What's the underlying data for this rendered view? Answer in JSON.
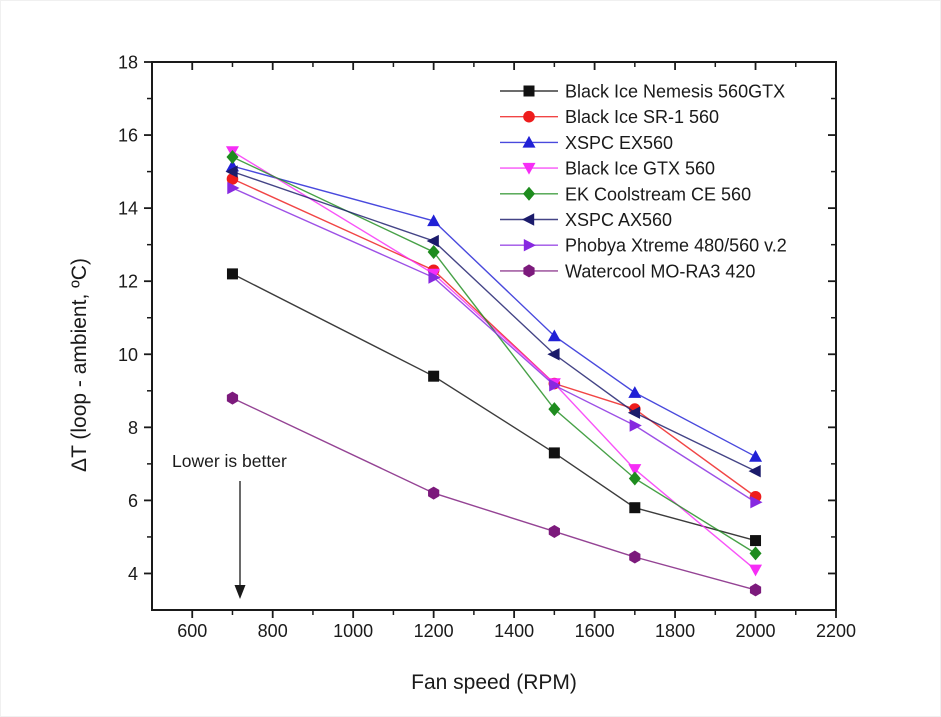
{
  "figure": {
    "background_color": "#ffffff",
    "frame_color": "#1a1a1a",
    "text_color": "#1a1a1a"
  },
  "chart_data": {
    "type": "line",
    "title": "",
    "xlabel": "Fan speed (RPM)",
    "ylabel": "ΔT (loop - ambient, ºC)",
    "xlim": [
      500,
      2200
    ],
    "ylim": [
      3,
      18
    ],
    "x_major_ticks": [
      600,
      800,
      1000,
      1200,
      1400,
      1600,
      1800,
      2000,
      2200
    ],
    "x_minor_ticks": [
      700,
      900,
      1100,
      1300,
      1500,
      1700,
      1900,
      2100
    ],
    "y_major_ticks": [
      4,
      6,
      8,
      10,
      12,
      14,
      16,
      18
    ],
    "y_minor_ticks": [
      5,
      7,
      9,
      11,
      13,
      15,
      17
    ],
    "grid": false,
    "legend_position": "upper-right-inside",
    "annotation": {
      "text": "Lower is better",
      "arrow": "down"
    },
    "x": [
      700,
      1200,
      1500,
      1700,
      2000
    ],
    "series": [
      {
        "name": "Black Ice Nemesis 560GTX",
        "marker": "square",
        "color": "#111111",
        "values": [
          12.2,
          9.4,
          7.3,
          5.8,
          4.9
        ]
      },
      {
        "name": "Black Ice SR-1 560",
        "marker": "circle",
        "color": "#ee1c1c",
        "values": [
          14.8,
          12.3,
          9.2,
          8.5,
          6.1
        ]
      },
      {
        "name": "XSPC EX560",
        "marker": "triangle-up",
        "color": "#2121d6",
        "values": [
          15.15,
          13.65,
          10.5,
          8.95,
          7.2
        ]
      },
      {
        "name": "Black Ice GTX 560",
        "marker": "triangle-down",
        "color": "#f62df6",
        "values": [
          15.55,
          12.2,
          9.2,
          6.85,
          4.1
        ]
      },
      {
        "name": "EK Coolstream CE 560",
        "marker": "diamond",
        "color": "#1e8c1e",
        "values": [
          15.4,
          12.8,
          8.5,
          6.6,
          4.55
        ]
      },
      {
        "name": "XSPC AX560",
        "marker": "triangle-left",
        "color": "#1b1b6b",
        "values": [
          15.0,
          13.1,
          10.0,
          8.4,
          6.8
        ]
      },
      {
        "name": "Phobya Xtreme 480/560 v.2",
        "marker": "triangle-right",
        "color": "#8729e0",
        "values": [
          14.55,
          12.1,
          9.15,
          8.05,
          5.95
        ]
      },
      {
        "name": "Watercool MO-RA3 420",
        "marker": "hexagon",
        "color": "#7c1a7c",
        "values": [
          8.8,
          6.2,
          5.15,
          4.45,
          3.55
        ]
      }
    ]
  }
}
